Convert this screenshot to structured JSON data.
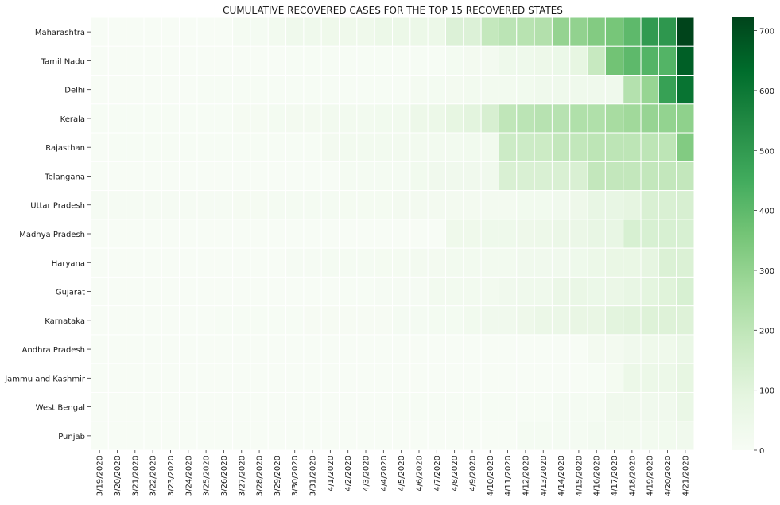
{
  "chart_data": {
    "type": "heatmap",
    "title": "CUMULATIVE RECOVERED CASES FOR THE TOP 15 RECOVERED STATES",
    "xlabel": "",
    "ylabel": "",
    "x": [
      "3/19/2020",
      "3/20/2020",
      "3/21/2020",
      "3/22/2020",
      "3/23/2020",
      "3/24/2020",
      "3/25/2020",
      "3/26/2020",
      "3/27/2020",
      "3/28/2020",
      "3/29/2020",
      "3/30/2020",
      "3/31/2020",
      "4/1/2020",
      "4/2/2020",
      "4/3/2020",
      "4/4/2020",
      "4/5/2020",
      "4/6/2020",
      "4/7/2020",
      "4/8/2020",
      "4/9/2020",
      "4/10/2020",
      "4/11/2020",
      "4/12/2020",
      "4/13/2020",
      "4/14/2020",
      "4/15/2020",
      "4/16/2020",
      "4/17/2020",
      "4/18/2020",
      "4/19/2020",
      "4/20/2020",
      "4/21/2020"
    ],
    "y": [
      "Maharashtra",
      "Tamil Nadu",
      "Delhi",
      "Kerala",
      "Rajasthan",
      "Telangana",
      "Uttar Pradesh",
      "Madhya Pradesh",
      "Haryana",
      "Gujarat",
      "Karnataka",
      "Andhra Pradesh",
      "Jammu and Kashmir",
      "West Bengal",
      "Punjab"
    ],
    "values": [
      [
        0,
        0,
        0,
        0,
        0,
        1,
        1,
        1,
        14,
        15,
        25,
        39,
        39,
        42,
        42,
        42,
        56,
        56,
        56,
        56,
        117,
        117,
        188,
        208,
        217,
        229,
        295,
        300,
        331,
        354,
        400,
        500,
        507,
        722
      ],
      [
        0,
        1,
        1,
        1,
        1,
        1,
        1,
        1,
        1,
        1,
        1,
        6,
        6,
        6,
        6,
        6,
        6,
        6,
        6,
        6,
        19,
        21,
        21,
        44,
        44,
        50,
        58,
        81,
        180,
        365,
        400,
        420,
        420,
        662
      ],
      [
        0,
        1,
        1,
        2,
        2,
        2,
        5,
        6,
        6,
        6,
        6,
        6,
        6,
        6,
        6,
        6,
        6,
        6,
        16,
        19,
        21,
        25,
        25,
        25,
        30,
        40,
        40,
        40,
        40,
        40,
        225,
        290,
        480,
        611
      ],
      [
        3,
        4,
        4,
        4,
        4,
        4,
        4,
        4,
        12,
        12,
        19,
        20,
        21,
        24,
        24,
        24,
        29,
        31,
        50,
        56,
        81,
        96,
        132,
        197,
        208,
        218,
        218,
        234,
        234,
        255,
        270,
        291,
        298,
        307
      ],
      [
        0,
        3,
        3,
        3,
        3,
        3,
        3,
        3,
        3,
        3,
        3,
        3,
        3,
        21,
        25,
        25,
        25,
        25,
        25,
        25,
        25,
        30,
        30,
        164,
        164,
        166,
        190,
        193,
        205,
        205,
        205,
        205,
        205,
        332
      ],
      [
        1,
        1,
        1,
        1,
        1,
        1,
        1,
        1,
        1,
        1,
        1,
        1,
        1,
        1,
        13,
        13,
        13,
        13,
        32,
        33,
        35,
        35,
        35,
        126,
        126,
        126,
        126,
        126,
        190,
        190,
        190,
        190,
        190,
        190
      ],
      [
        9,
        9,
        9,
        9,
        9,
        9,
        9,
        9,
        11,
        11,
        14,
        14,
        14,
        14,
        17,
        17,
        17,
        21,
        21,
        21,
        21,
        21,
        21,
        21,
        31,
        31,
        36,
        46,
        74,
        74,
        84,
        126,
        126,
        133
      ],
      [
        0,
        0,
        0,
        0,
        0,
        0,
        0,
        0,
        0,
        0,
        0,
        0,
        0,
        0,
        0,
        0,
        0,
        0,
        0,
        0,
        41,
        42,
        43,
        43,
        47,
        52,
        60,
        60,
        74,
        74,
        131,
        131,
        131,
        131
      ],
      [
        2,
        2,
        2,
        2,
        2,
        2,
        2,
        2,
        2,
        2,
        2,
        8,
        8,
        13,
        13,
        13,
        17,
        17,
        21,
        21,
        25,
        25,
        27,
        27,
        34,
        34,
        34,
        43,
        56,
        67,
        67,
        87,
        121,
        121
      ],
      [
        0,
        0,
        0,
        0,
        0,
        0,
        0,
        0,
        0,
        1,
        1,
        1,
        1,
        1,
        5,
        5,
        10,
        10,
        10,
        25,
        25,
        27,
        27,
        33,
        40,
        40,
        59,
        65,
        58,
        59,
        73,
        92,
        106,
        131
      ],
      [
        0,
        0,
        0,
        0,
        0,
        0,
        0,
        3,
        3,
        3,
        5,
        5,
        7,
        7,
        7,
        7,
        7,
        13,
        13,
        18,
        18,
        31,
        34,
        34,
        47,
        60,
        60,
        72,
        72,
        95,
        102,
        112,
        112,
        112
      ],
      [
        0,
        0,
        0,
        0,
        0,
        0,
        0,
        0,
        0,
        0,
        0,
        0,
        0,
        0,
        0,
        0,
        0,
        1,
        1,
        1,
        1,
        1,
        1,
        1,
        1,
        1,
        1,
        1,
        20,
        20,
        36,
        42,
        42,
        65
      ],
      [
        0,
        0,
        0,
        0,
        0,
        0,
        0,
        0,
        0,
        0,
        0,
        0,
        0,
        0,
        0,
        0,
        0,
        0,
        0,
        0,
        0,
        0,
        0,
        0,
        0,
        0,
        0,
        0,
        6,
        16,
        56,
        56,
        56,
        81
      ],
      [
        0,
        0,
        0,
        0,
        0,
        0,
        0,
        0,
        0,
        0,
        0,
        0,
        0,
        0,
        0,
        0,
        0,
        3,
        3,
        3,
        3,
        3,
        3,
        3,
        3,
        3,
        13,
        13,
        13,
        35,
        35,
        35,
        35,
        66
      ],
      [
        0,
        0,
        0,
        0,
        0,
        0,
        0,
        0,
        0,
        0,
        1,
        1,
        1,
        1,
        1,
        1,
        1,
        1,
        1,
        1,
        1,
        1,
        1,
        1,
        14,
        15,
        15,
        15,
        23,
        25,
        25,
        27,
        29,
        33
      ]
    ],
    "colorbar": {
      "ticks": [
        0,
        100,
        200,
        300,
        400,
        500,
        600,
        700
      ],
      "vmin": 0,
      "vmax": 722
    },
    "colormap": [
      "#f7fcf5",
      "#e5f5e0",
      "#c7e9c0",
      "#a1d99b",
      "#74c476",
      "#41ab5d",
      "#238b45",
      "#006d2c",
      "#00441b"
    ],
    "grid": true,
    "cell_border_color": "#ffffff"
  }
}
